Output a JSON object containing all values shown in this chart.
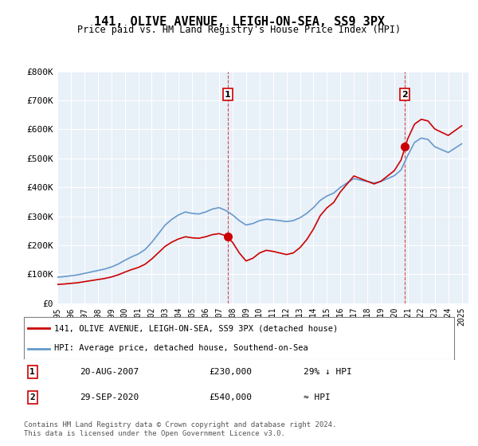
{
  "title": "141, OLIVE AVENUE, LEIGH-ON-SEA, SS9 3PX",
  "subtitle": "Price paid vs. HM Land Registry's House Price Index (HPI)",
  "ylabel": "",
  "ylim": [
    0,
    800000
  ],
  "yticks": [
    0,
    100000,
    200000,
    300000,
    400000,
    500000,
    600000,
    700000,
    800000
  ],
  "ytick_labels": [
    "£0",
    "£100K",
    "£200K",
    "£300K",
    "£400K",
    "£500K",
    "£600K",
    "£700K",
    "£800K"
  ],
  "sale1_date": 2007.64,
  "sale1_price": 230000,
  "sale1_label": "1",
  "sale2_date": 2020.75,
  "sale2_price": 540000,
  "sale2_label": "2",
  "legend_line1": "141, OLIVE AVENUE, LEIGH-ON-SEA, SS9 3PX (detached house)",
  "legend_line2": "HPI: Average price, detached house, Southend-on-Sea",
  "table_row1_label": "1",
  "table_row1_date": "20-AUG-2007",
  "table_row1_price": "£230,000",
  "table_row1_hpi": "29% ↓ HPI",
  "table_row2_label": "2",
  "table_row2_date": "29-SEP-2020",
  "table_row2_price": "£540,000",
  "table_row2_hpi": "≈ HPI",
  "footer": "Contains HM Land Registry data © Crown copyright and database right 2024.\nThis data is licensed under the Open Government Licence v3.0.",
  "hpi_color": "#6699cc",
  "price_color": "#cc0000",
  "marker_color": "#cc0000",
  "bg_color": "#ffffff",
  "plot_bg_color": "#e8f0f8"
}
